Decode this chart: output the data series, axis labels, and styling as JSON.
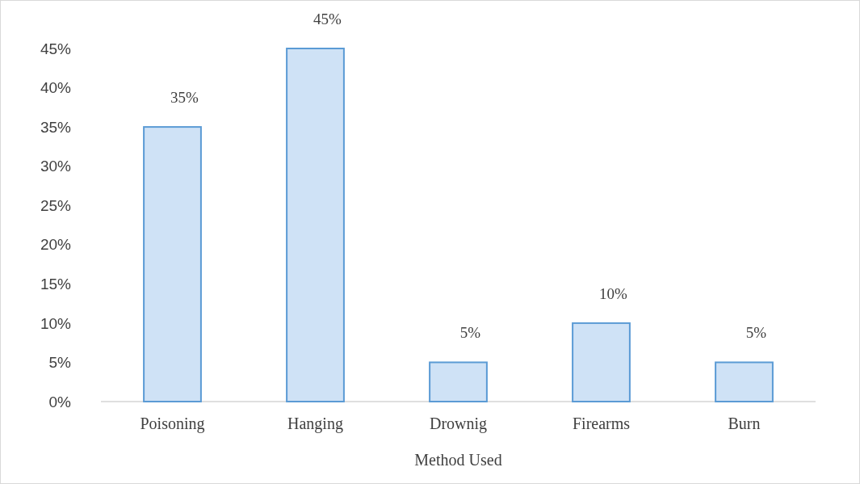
{
  "chart_data": {
    "type": "bar",
    "xlabel": "Method Used",
    "categories": [
      "Poisoning",
      "Hanging",
      "Drownig",
      "Firearms",
      "Burn"
    ],
    "values": [
      35,
      45,
      5,
      10,
      5
    ],
    "value_labels": [
      "35%",
      "45%",
      "5%",
      "10%",
      "5%"
    ],
    "color": "#cfe2f6",
    "ylim": [
      0,
      45
    ],
    "yticks": [
      {
        "value": 0,
        "label": "0%"
      },
      {
        "value": 5,
        "label": "5%"
      },
      {
        "value": 10,
        "label": "10%"
      },
      {
        "value": 15,
        "label": "15%"
      },
      {
        "value": 20,
        "label": "20%"
      },
      {
        "value": 25,
        "label": "25%"
      },
      {
        "value": 30,
        "label": "30%"
      },
      {
        "value": 35,
        "label": "35%"
      },
      {
        "value": 40,
        "label": "40%"
      },
      {
        "value": 45,
        "label": "45%"
      }
    ],
    "grid": false
  }
}
